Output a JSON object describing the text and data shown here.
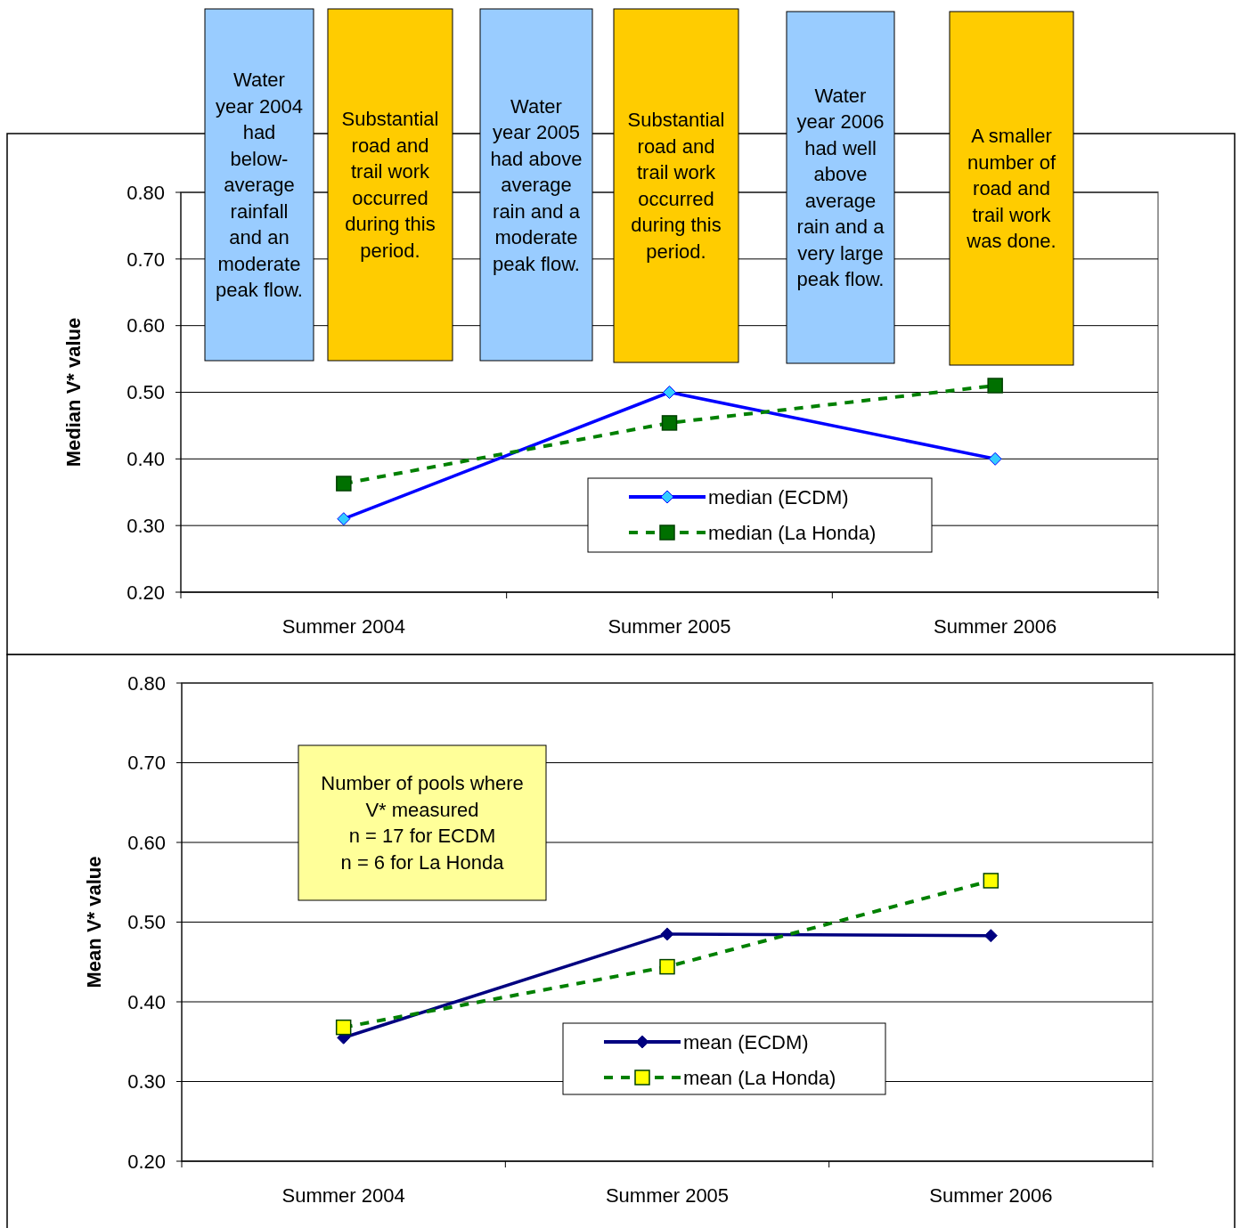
{
  "chart_data": [
    {
      "type": "line",
      "ylabel": "Median V* value",
      "categories": [
        "Summer 2004",
        "Summer 2005",
        "Summer 2006"
      ],
      "series": [
        {
          "name": "median (ECDM)",
          "color": "#0000ff",
          "colors": [
            "#33ccff",
            "#33ccff",
            "#33ccff"
          ],
          "marker": "diamond",
          "line_style": "solid",
          "values": [
            0.31,
            0.5,
            0.4
          ]
        },
        {
          "name": "median (La Honda)",
          "color": "#008000",
          "colors": [
            "#007000",
            "#007000",
            "#007000"
          ],
          "marker": "square",
          "line_style": "dashed",
          "values": [
            0.363,
            0.454,
            0.51
          ]
        }
      ],
      "ylim": [
        0.2,
        0.8
      ],
      "yticks": [
        {
          "value": 0.2,
          "label": "0.20"
        },
        {
          "value": 0.3,
          "label": "0.30"
        },
        {
          "value": 0.4,
          "label": "0.40"
        },
        {
          "value": 0.5,
          "label": "0.50"
        },
        {
          "value": 0.6,
          "label": "0.60"
        },
        {
          "value": 0.7,
          "label": "0.70"
        },
        {
          "value": 0.8,
          "label": "0.80"
        }
      ],
      "grid": "y",
      "legend": "bottom",
      "annotations": [
        "Water year 2004 had below-average rainfall and an moderate peak flow.",
        "Substantial road and trail work occurred during this period.",
        "Water year 2005 had above average rain and a moderate peak flow.",
        "Substantial road and trail work occurred during this period.",
        "Water year 2006 had well above average rain and a very large peak flow.",
        "A smaller number of road and trail work was done."
      ]
    },
    {
      "type": "line",
      "ylabel": "Mean V* value",
      "categories": [
        "Summer 2004",
        "Summer 2005",
        "Summer 2006"
      ],
      "series": [
        {
          "name": "mean (ECDM)",
          "color": "#000080",
          "colors": [
            "#000080",
            "#000080",
            "#000080"
          ],
          "marker": "diamond",
          "line_style": "solid",
          "values": [
            0.355,
            0.485,
            0.483
          ]
        },
        {
          "name": "mean (La Honda)",
          "color": "#008000",
          "colors": [
            "#ffff00",
            "#ffff00",
            "#ffff00"
          ],
          "marker": "square",
          "line_style": "dashed",
          "values": [
            0.368,
            0.444,
            0.552
          ]
        }
      ],
      "ylim": [
        0.2,
        0.8
      ],
      "yticks": [
        {
          "value": 0.2,
          "label": "0.20"
        },
        {
          "value": 0.3,
          "label": "0.30"
        },
        {
          "value": 0.4,
          "label": "0.40"
        },
        {
          "value": 0.5,
          "label": "0.50"
        },
        {
          "value": 0.6,
          "label": "0.60"
        },
        {
          "value": 0.7,
          "label": "0.70"
        },
        {
          "value": 0.8,
          "label": "0.80"
        }
      ],
      "grid": "y",
      "legend": "bottom",
      "annotations": [
        "Number of pools where\nV* measured\nn = 17 for ECDM\nn = 6 for La Honda"
      ]
    }
  ]
}
